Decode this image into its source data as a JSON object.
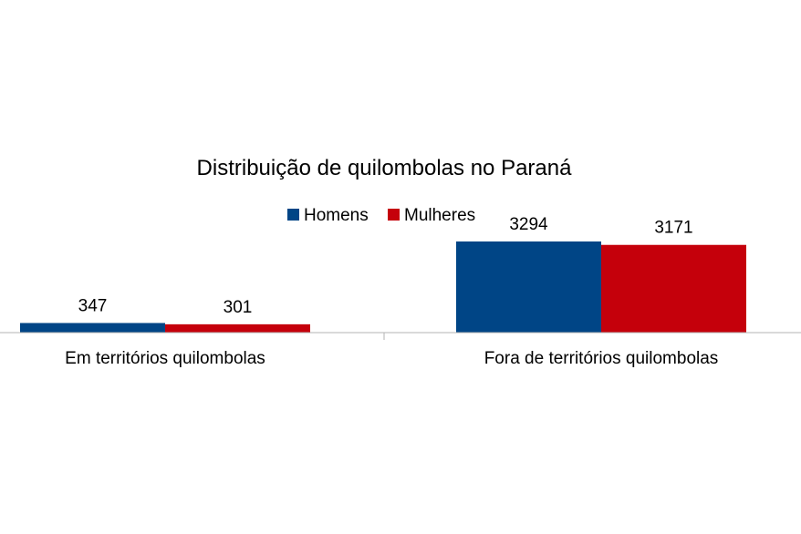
{
  "chart_data": {
    "type": "bar",
    "title": "Distribuição de quilombolas no Paraná",
    "categories": [
      "Em territórios quilombolas",
      "Fora de territórios quilombolas"
    ],
    "series": [
      {
        "name": "Homens",
        "values": [
          347,
          3294
        ],
        "color": "#004586"
      },
      {
        "name": "Mulheres",
        "values": [
          301,
          3171
        ],
        "color": "#c5000b"
      }
    ],
    "ylim": [
      0,
      3800
    ],
    "grid": false,
    "legend": "top-center",
    "data_labels": true
  }
}
